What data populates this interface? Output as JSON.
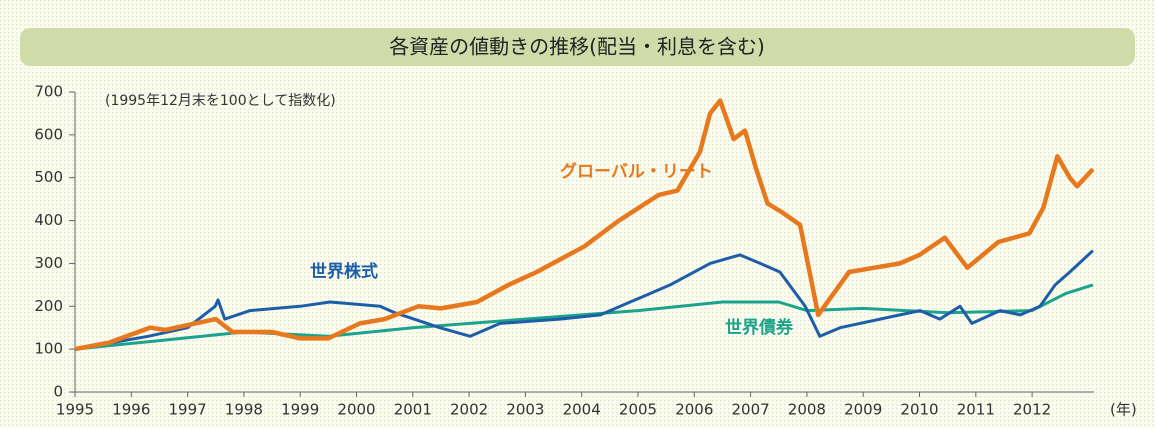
{
  "chart_data": {
    "type": "line",
    "title": "各資産の値動きの推移(配当・利息を含む)",
    "subtitle": "(1995年12月末を100として指数化)",
    "xlabel": "(年)",
    "xlim": [
      1995,
      2013.1
    ],
    "xticks": [
      1995,
      1996,
      1997,
      1998,
      1999,
      2000,
      2001,
      2002,
      2003,
      2004,
      2005,
      2006,
      2007,
      2008,
      2009,
      2010,
      2011,
      2012
    ],
    "ylim": [
      0,
      700
    ],
    "yticks": [
      0,
      100,
      200,
      300,
      400,
      500,
      600,
      700
    ],
    "series": [
      {
        "name": "グローバル・リート",
        "color": "#e8781e",
        "x": [
          1995,
          1995.6,
          1996.33,
          1996.6,
          1997.5,
          1997.8,
          1998.5,
          1999.0,
          1999.5,
          2000.06,
          2000.5,
          2001.1,
          2001.5,
          2002.14,
          2002.7,
          2003.2,
          2004.05,
          2004.66,
          2005.37,
          2005.7,
          2006.1,
          2006.28,
          2006.46,
          2006.7,
          2006.9,
          2007.1,
          2007.3,
          2007.55,
          2007.88,
          2008.2,
          2008.75,
          2009.2,
          2009.65,
          2010.0,
          2010.45,
          2010.85,
          2011.4,
          2011.95,
          2012.2,
          2012.45,
          2012.67,
          2012.8,
          2013.08
        ],
        "values": [
          100,
          115,
          150,
          145,
          170,
          140,
          140,
          125,
          125,
          160,
          170,
          200,
          195,
          210,
          250,
          280,
          340,
          400,
          460,
          470,
          560,
          650,
          680,
          590,
          610,
          520,
          440,
          420,
          390,
          180,
          280,
          290,
          300,
          320,
          360,
          290,
          350,
          370,
          430,
          550,
          500,
          480,
          520
        ]
      },
      {
        "name": "世界株式",
        "color": "#1e5ea8",
        "x": [
          1995,
          1996.3,
          1997.0,
          1997.49,
          1997.54,
          1997.66,
          1998.11,
          1999.0,
          1999.53,
          2000.42,
          2000.68,
          2001.48,
          2002.02,
          2002.55,
          2003.61,
          2004.33,
          2005.04,
          2005.57,
          2006.28,
          2006.81,
          2007.17,
          2007.52,
          2007.97,
          2008.23,
          2008.59,
          2009.3,
          2010.01,
          2010.36,
          2010.72,
          2010.93,
          2011.43,
          2011.79,
          2012.14,
          2012.41,
          2012.67,
          2013.08
        ],
        "values": [
          100,
          130,
          150,
          200,
          215,
          170,
          190,
          200,
          210,
          200,
          185,
          150,
          130,
          160,
          170,
          180,
          220,
          250,
          300,
          320,
          300,
          280,
          200,
          130,
          150,
          170,
          190,
          170,
          200,
          160,
          190,
          180,
          200,
          250,
          280,
          330
        ]
      },
      {
        "name": "世界債券",
        "color": "#1ba38c",
        "x": [
          1995,
          1996.5,
          1998,
          1999.5,
          2001,
          2003,
          2005,
          2006.5,
          2007.5,
          2008,
          2009,
          2010.5,
          2012,
          2012.6,
          2013.08
        ],
        "values": [
          100,
          120,
          140,
          130,
          150,
          170,
          190,
          210,
          210,
          190,
          195,
          185,
          190,
          230,
          250
        ]
      }
    ]
  }
}
